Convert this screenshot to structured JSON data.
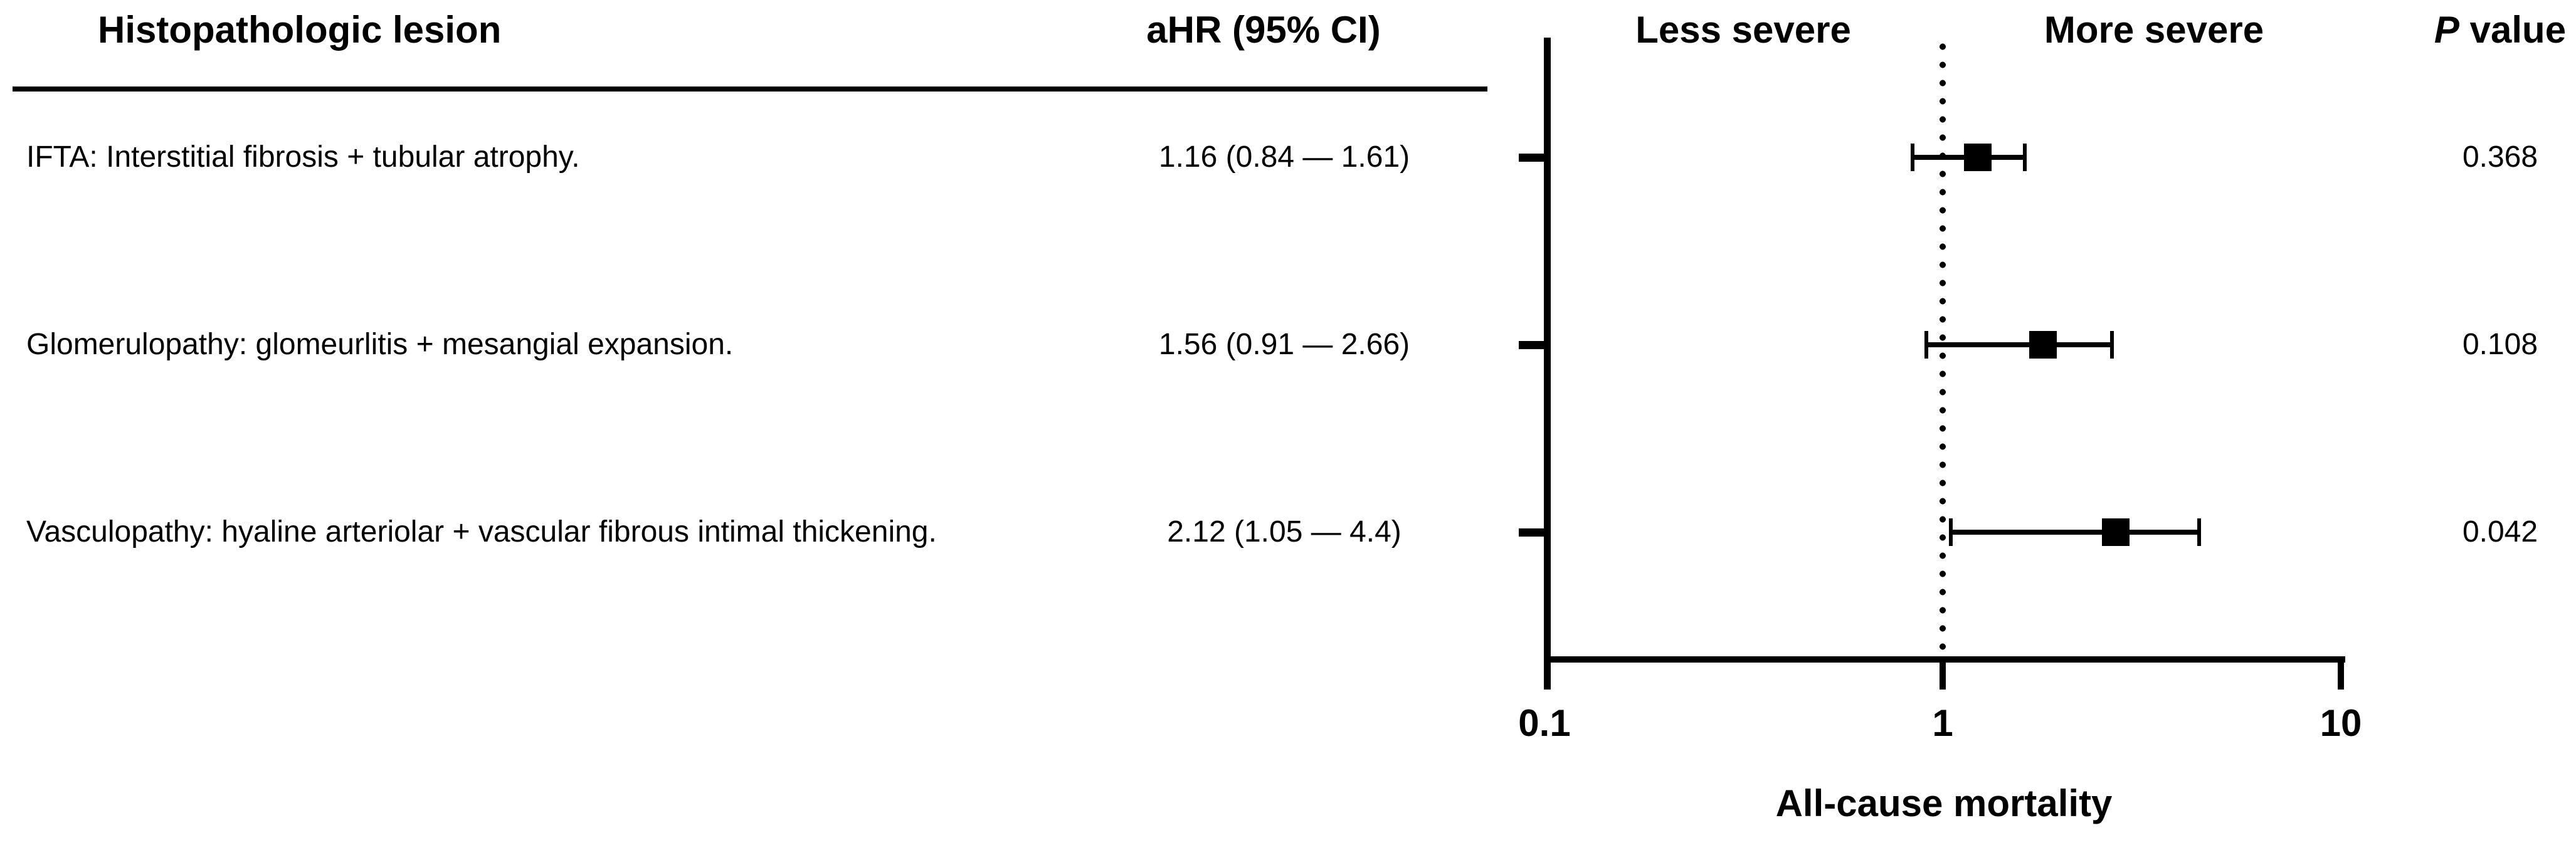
{
  "headers": {
    "lesion": "Histopathologic lesion",
    "ahr": "aHR (95% CI)",
    "p_italic": "P",
    "p_rest": " value"
  },
  "chart_data": {
    "type": "forest",
    "xlabel": "All-cause mortality",
    "direction_labels": {
      "left": "Less severe",
      "right": "More severe"
    },
    "x_axis": {
      "scale": "log10",
      "range": [
        0.1,
        10
      ],
      "ticks": [
        0.1,
        1,
        10
      ],
      "tick_labels": [
        "0.1",
        "1",
        "10"
      ],
      "reference_line": 1,
      "reference_line_style": "dotted",
      "grid": false
    },
    "rows": [
      {
        "label": "IFTA: Interstitial fibrosis + tubular atrophy.",
        "ahr_text": "1.16 (0.84 — 1.61)",
        "ahr": 1.16,
        "ci_low": 0.84,
        "ci_high": 1.61,
        "p_value": "0.368"
      },
      {
        "label": "Glomerulopathy: glomeurlitis + mesangial expansion.",
        "ahr_text": "1.56 (0.91 — 2.66)",
        "ahr": 1.56,
        "ci_low": 0.91,
        "ci_high": 2.66,
        "p_value": "0.108"
      },
      {
        "label": "Vasculopathy: hyaline arteriolar + vascular fibrous intimal thickening.",
        "ahr_text": "2.12 (1.05 — 4.4)",
        "ahr": 2.12,
        "ci_low": 1.05,
        "ci_high": 4.4,
        "p_value": "0.042"
      }
    ],
    "marker": "filled-square",
    "colors": {
      "ink": "#000000",
      "background": "#ffffff"
    }
  }
}
